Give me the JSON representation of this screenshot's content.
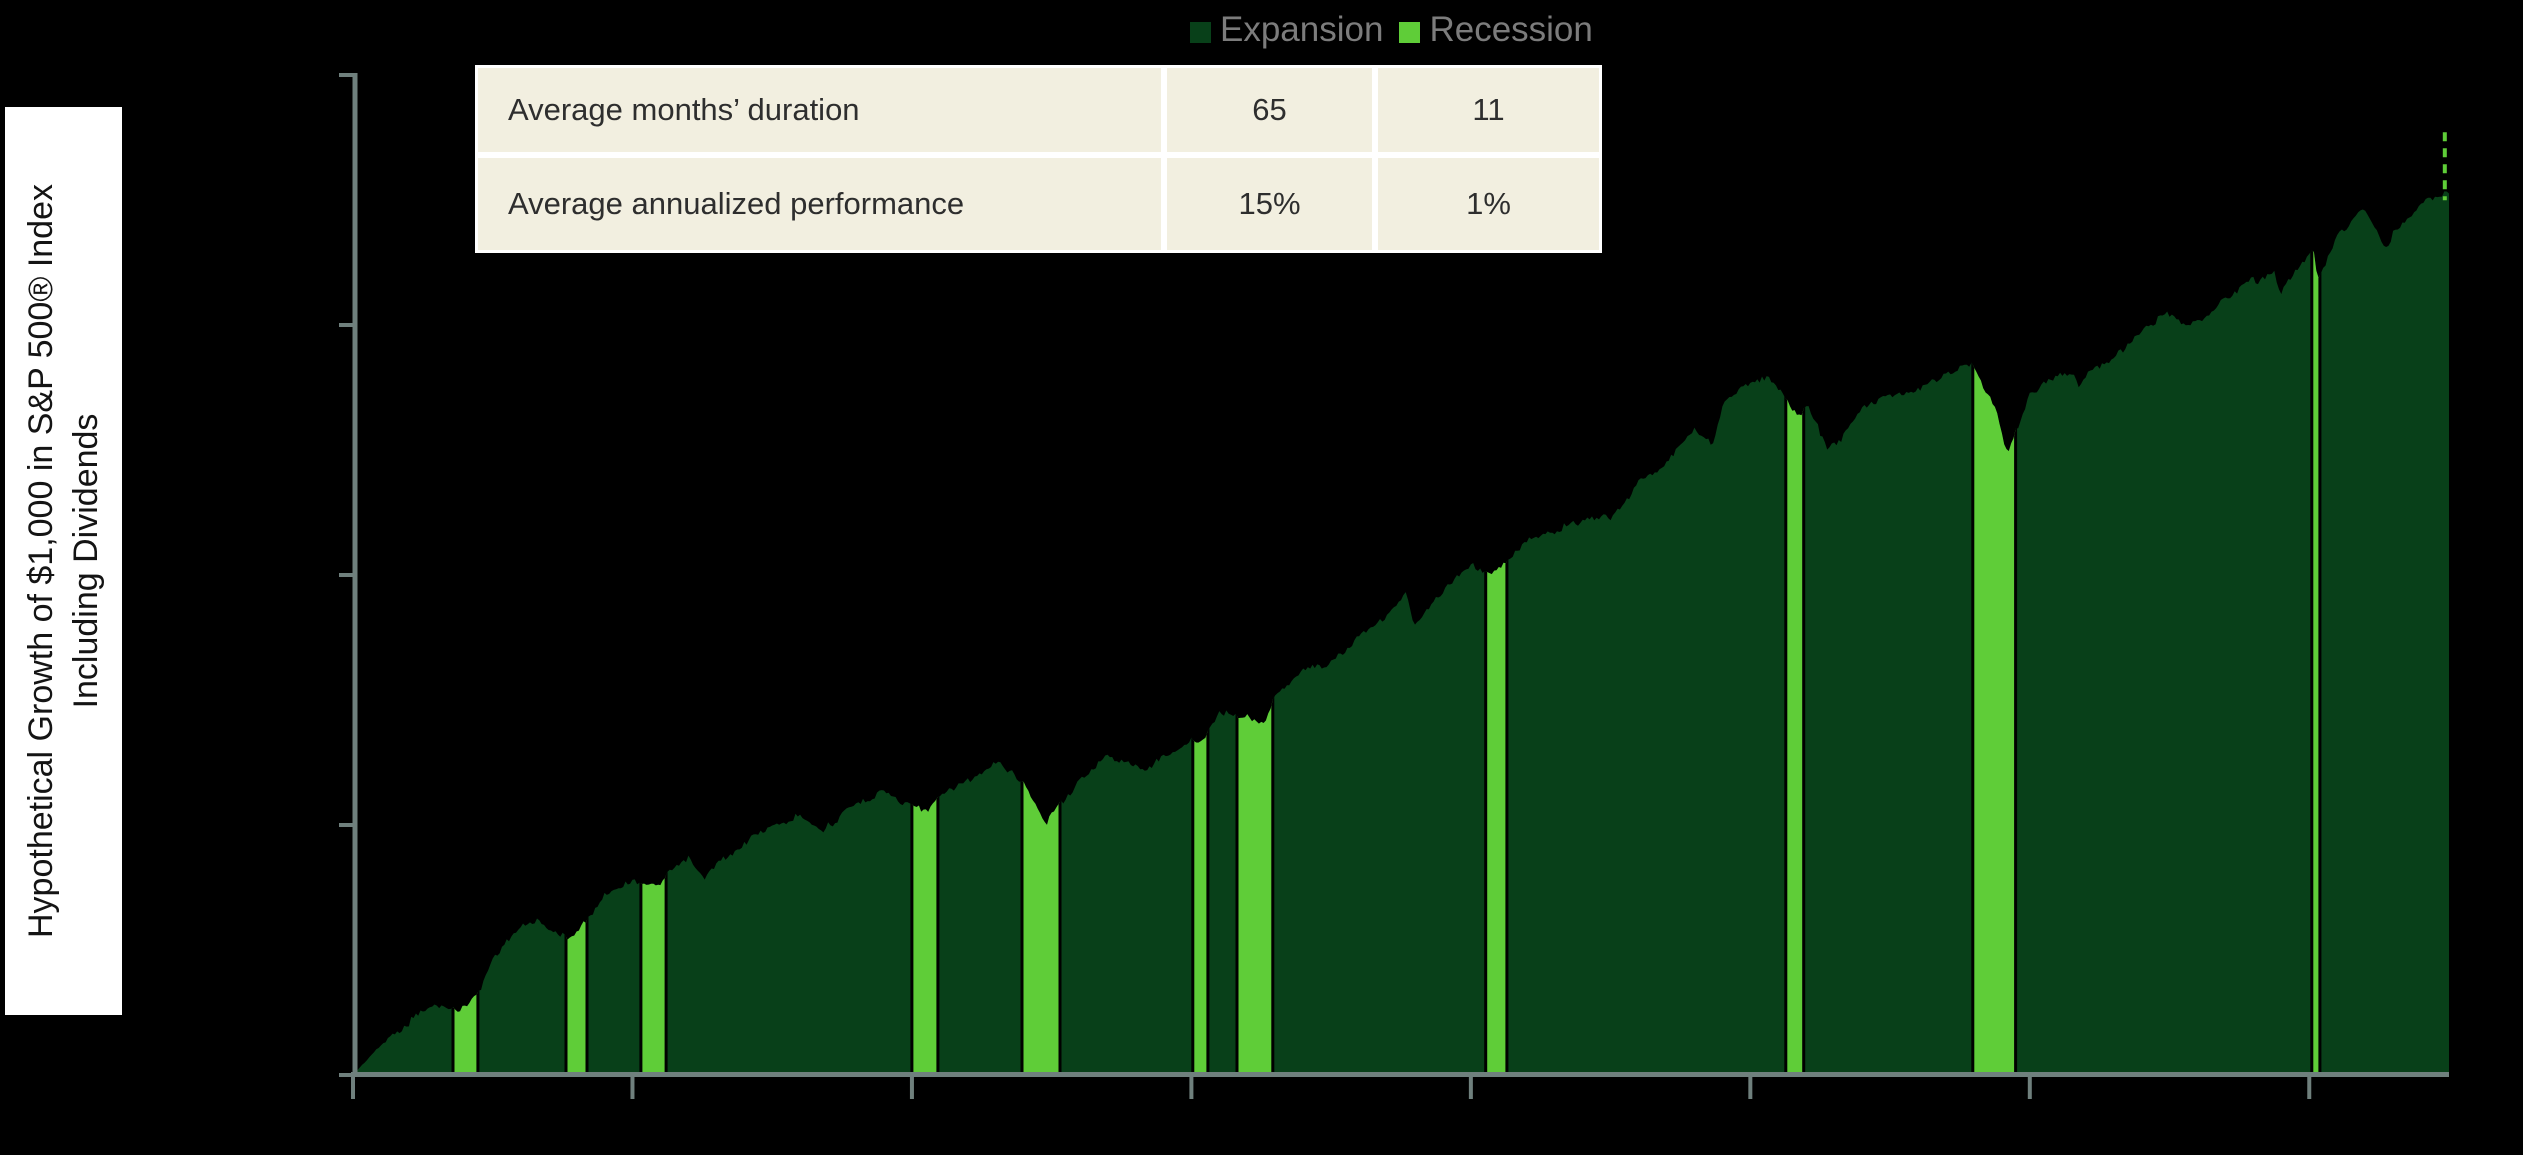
{
  "y_axis_title": {
    "line1": "Hypothetical Growth of $1,000 in S&P 500® Index",
    "line2": "Including Dividends"
  },
  "legend": {
    "items": [
      {
        "label": "Expansion",
        "color_key": "expansion"
      },
      {
        "label": "Recession",
        "color_key": "recession"
      }
    ]
  },
  "stats_table": {
    "rows": [
      {
        "label": "Average months’ duration",
        "expansion": "65",
        "recession": "11"
      },
      {
        "label": "Average annualized performance",
        "expansion": "15%",
        "recession": "1%"
      }
    ]
  },
  "chart_data": {
    "type": "area",
    "title": "Hypothetical Growth of $1,000 in S&P 500® Index Including Dividends",
    "x_axis": {
      "start": 1950,
      "end": 2025,
      "tick_years": [
        1950,
        1960,
        1970,
        1980,
        1990,
        2000,
        2010,
        2020
      ],
      "labels_visible": false,
      "grid": false
    },
    "y_axis": {
      "scale": "log",
      "min": 1000,
      "max": 10000000,
      "ticks": [
        1000,
        10000,
        100000,
        1000000,
        10000000
      ],
      "labels_visible": false,
      "grid": false
    },
    "legend_position": "top",
    "series": [
      {
        "name": "Growth of $1,000 in S&P 500 Index including dividends",
        "points": [
          [
            1950,
            1000
          ],
          [
            1950.6,
            1180
          ],
          [
            1951,
            1317
          ],
          [
            1952,
            1633
          ],
          [
            1953,
            1933
          ],
          [
            1953.8,
            1790
          ],
          [
            1954.5,
            2100
          ],
          [
            1955,
            2921
          ],
          [
            1956,
            3844
          ],
          [
            1956.6,
            4200
          ],
          [
            1957.7,
            3450
          ],
          [
            1958,
            3655
          ],
          [
            1959,
            5241
          ],
          [
            1960,
            5870
          ],
          [
            1960.8,
            5600
          ],
          [
            1962,
            7486
          ],
          [
            1962.55,
            6050
          ],
          [
            1963,
            6835
          ],
          [
            1964,
            8393
          ],
          [
            1965,
            9778
          ],
          [
            1966,
            11000
          ],
          [
            1966.8,
            9250
          ],
          [
            1967,
            9889
          ],
          [
            1968,
            12262
          ],
          [
            1968.95,
            13623
          ],
          [
            1969.6,
            12300
          ],
          [
            1970,
            12465
          ],
          [
            1970.55,
            11200
          ],
          [
            1971,
            12964
          ],
          [
            1972,
            14818
          ],
          [
            1972.95,
            17633
          ],
          [
            1973.6,
            16200
          ],
          [
            1974,
            15041
          ],
          [
            1974.8,
            9700
          ],
          [
            1975,
            11055
          ],
          [
            1976,
            15168
          ],
          [
            1977,
            18778
          ],
          [
            1978,
            17426
          ],
          [
            1978.25,
            16700
          ],
          [
            1979,
            18576
          ],
          [
            1980,
            21994
          ],
          [
            1980.35,
            21000
          ],
          [
            1981,
            29120
          ],
          [
            1981.8,
            26200
          ],
          [
            1982,
            27693
          ],
          [
            1982.6,
            25100
          ],
          [
            1983,
            33647
          ],
          [
            1984,
            41251
          ],
          [
            1985,
            43850
          ],
          [
            1986,
            57750
          ],
          [
            1987,
            68549
          ],
          [
            1987.7,
            86000
          ],
          [
            1987.95,
            63500
          ],
          [
            1988.3,
            69000
          ],
          [
            1989,
            84164
          ],
          [
            1990,
            110844
          ],
          [
            1990.65,
            98500
          ],
          [
            1991.3,
            112000
          ],
          [
            1992,
            140167
          ],
          [
            1993,
            150820
          ],
          [
            1994,
            166052
          ],
          [
            1995,
            168211
          ],
          [
            1996,
            231458
          ],
          [
            1997,
            284693
          ],
          [
            1998,
            379780
          ],
          [
            1998.65,
            334000
          ],
          [
            1999,
            488397
          ],
          [
            2000,
            590960
          ],
          [
            2000.65,
            600000
          ],
          [
            2001.2,
            516000
          ],
          [
            2001.8,
            420000
          ],
          [
            2002,
            473258
          ],
          [
            2002.8,
            322000
          ],
          [
            2003.2,
            334000
          ],
          [
            2004,
            474476
          ],
          [
            2005,
            526194
          ],
          [
            2006,
            551977
          ],
          [
            2007,
            639190
          ],
          [
            2007.8,
            705000
          ],
          [
            2008,
            674345
          ],
          [
            2008.8,
            460000
          ],
          [
            2009.2,
            302000
          ],
          [
            2010,
            537419
          ],
          [
            2011,
            618569
          ],
          [
            2011.55,
            655000
          ],
          [
            2011.8,
            560000
          ],
          [
            2012,
            631559
          ],
          [
            2013,
            732608
          ],
          [
            2014,
            969973
          ],
          [
            2015,
            1102859
          ],
          [
            2015.65,
            1010000
          ],
          [
            2016.1,
            1055000
          ],
          [
            2017,
            1252495
          ],
          [
            2018,
            1525539
          ],
          [
            2018.1,
            1440000
          ],
          [
            2018.75,
            1610000
          ],
          [
            2018.97,
            1330000
          ],
          [
            2020,
            1917816
          ],
          [
            2020.15,
            2060000
          ],
          [
            2020.3,
            1480000
          ],
          [
            2021,
            2270694
          ],
          [
            2021.9,
            2950000
          ],
          [
            2022,
            2922383
          ],
          [
            2022.8,
            1980000
          ],
          [
            2023,
            2393432
          ],
          [
            2023.6,
            2700000
          ],
          [
            2024,
            3022904
          ],
          [
            2024.5,
            3180000
          ],
          [
            2025,
            3400000
          ]
        ]
      }
    ],
    "recessions": [
      {
        "start": 1953.58,
        "end": 1954.47
      },
      {
        "start": 1957.62,
        "end": 1958.37
      },
      {
        "start": 1960.3,
        "end": 1961.2
      },
      {
        "start": 1970.0,
        "end": 1970.93
      },
      {
        "start": 1973.94,
        "end": 1975.3
      },
      {
        "start": 1980.05,
        "end": 1980.59
      },
      {
        "start": 1981.63,
        "end": 1982.91
      },
      {
        "start": 1990.53,
        "end": 1991.29
      },
      {
        "start": 2001.27,
        "end": 2001.91
      },
      {
        "start": 2007.96,
        "end": 2009.49
      },
      {
        "start": 2020.09,
        "end": 2020.38
      }
    ],
    "end_marker": {
      "year": 2024.85,
      "style": "dashed-vertical-line"
    },
    "colors": {
      "expansion": "#084019",
      "recession": "#5fcd38",
      "axis": "#6f807d",
      "background": "#000000",
      "table_fill": "#f2efe0",
      "legend_text": "#7c7c7c"
    }
  }
}
